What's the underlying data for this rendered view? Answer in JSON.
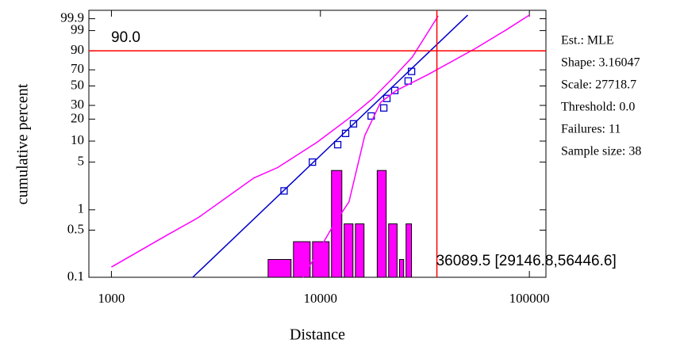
{
  "chart_data": {
    "type": "probability",
    "xlabel": "Distance",
    "ylabel": "cumulative percent",
    "xscale": "log",
    "yscale": "weibull",
    "xlim": [
      780,
      120000
    ],
    "ylim": [
      0.1,
      99.99
    ],
    "xticks": [
      1000,
      10000,
      100000
    ],
    "yticks": [
      0.1,
      0.5,
      1,
      5,
      10,
      20,
      30,
      50,
      70,
      90,
      99,
      99.9
    ],
    "series": [
      {
        "color": "#0000cc",
        "marker": "square",
        "x": [
          6700,
          9160,
          12100,
          13200,
          14400,
          17500,
          20100,
          20800,
          22700,
          26300,
          27300
        ],
        "values": [
          1.9,
          5.0,
          8.9,
          12.8,
          17.3,
          22,
          27.9,
          36.4,
          44.8,
          56.1,
          68
        ]
      },
      {
        "color": "#0000cc",
        "marker": "line",
        "x": [
          2450,
          50700
        ],
        "values": [
          0.1,
          99.96
        ]
      },
      {
        "color": "#ff00ff",
        "marker": "line",
        "x": [
          1000,
          1841,
          2610,
          4810,
          6240,
          9660,
          13700,
          17800,
          22100,
          27500,
          36600
        ],
        "values": [
          0.142,
          0.42,
          0.77,
          2.95,
          4.17,
          9.66,
          20.5,
          36.4,
          59.1,
          84.4,
          99.95
        ]
      },
      {
        "color": "#ff00ff",
        "marker": "line",
        "x": [
          8260,
          9660,
          11500,
          13700,
          16300,
          19400,
          23100,
          32700,
          55200,
          78300,
          100000
        ],
        "values": [
          0.1,
          0.23,
          0.58,
          1.31,
          11.9,
          32.6,
          44.8,
          64.0,
          91.8,
          99.19,
          99.96
        ]
      }
    ],
    "histogram": {
      "color": "#ff00ff",
      "bins": [
        5620,
        7430,
        9170,
        11300,
        13000,
        14700,
        16600,
        18700,
        21200,
        23900,
        25700,
        28000
      ],
      "counts": [
        1,
        2,
        2,
        6,
        3,
        3,
        0,
        6,
        3,
        1,
        3
      ],
      "hist_ylim": [
        0,
        15
      ]
    },
    "hline": {
      "value": 90,
      "label": "90.0",
      "color": "#ff0000"
    },
    "vline": {
      "value": 36089.5,
      "label": "36089.5 [29146.8,56446.6]",
      "color": "#ff0000"
    },
    "annotations": [
      "Est.: MLE",
      "Shape: 3.16047",
      "Scale: 27718.7",
      "Threshold: 0.0",
      "Failures: 11",
      "Sample size: 38"
    ]
  }
}
